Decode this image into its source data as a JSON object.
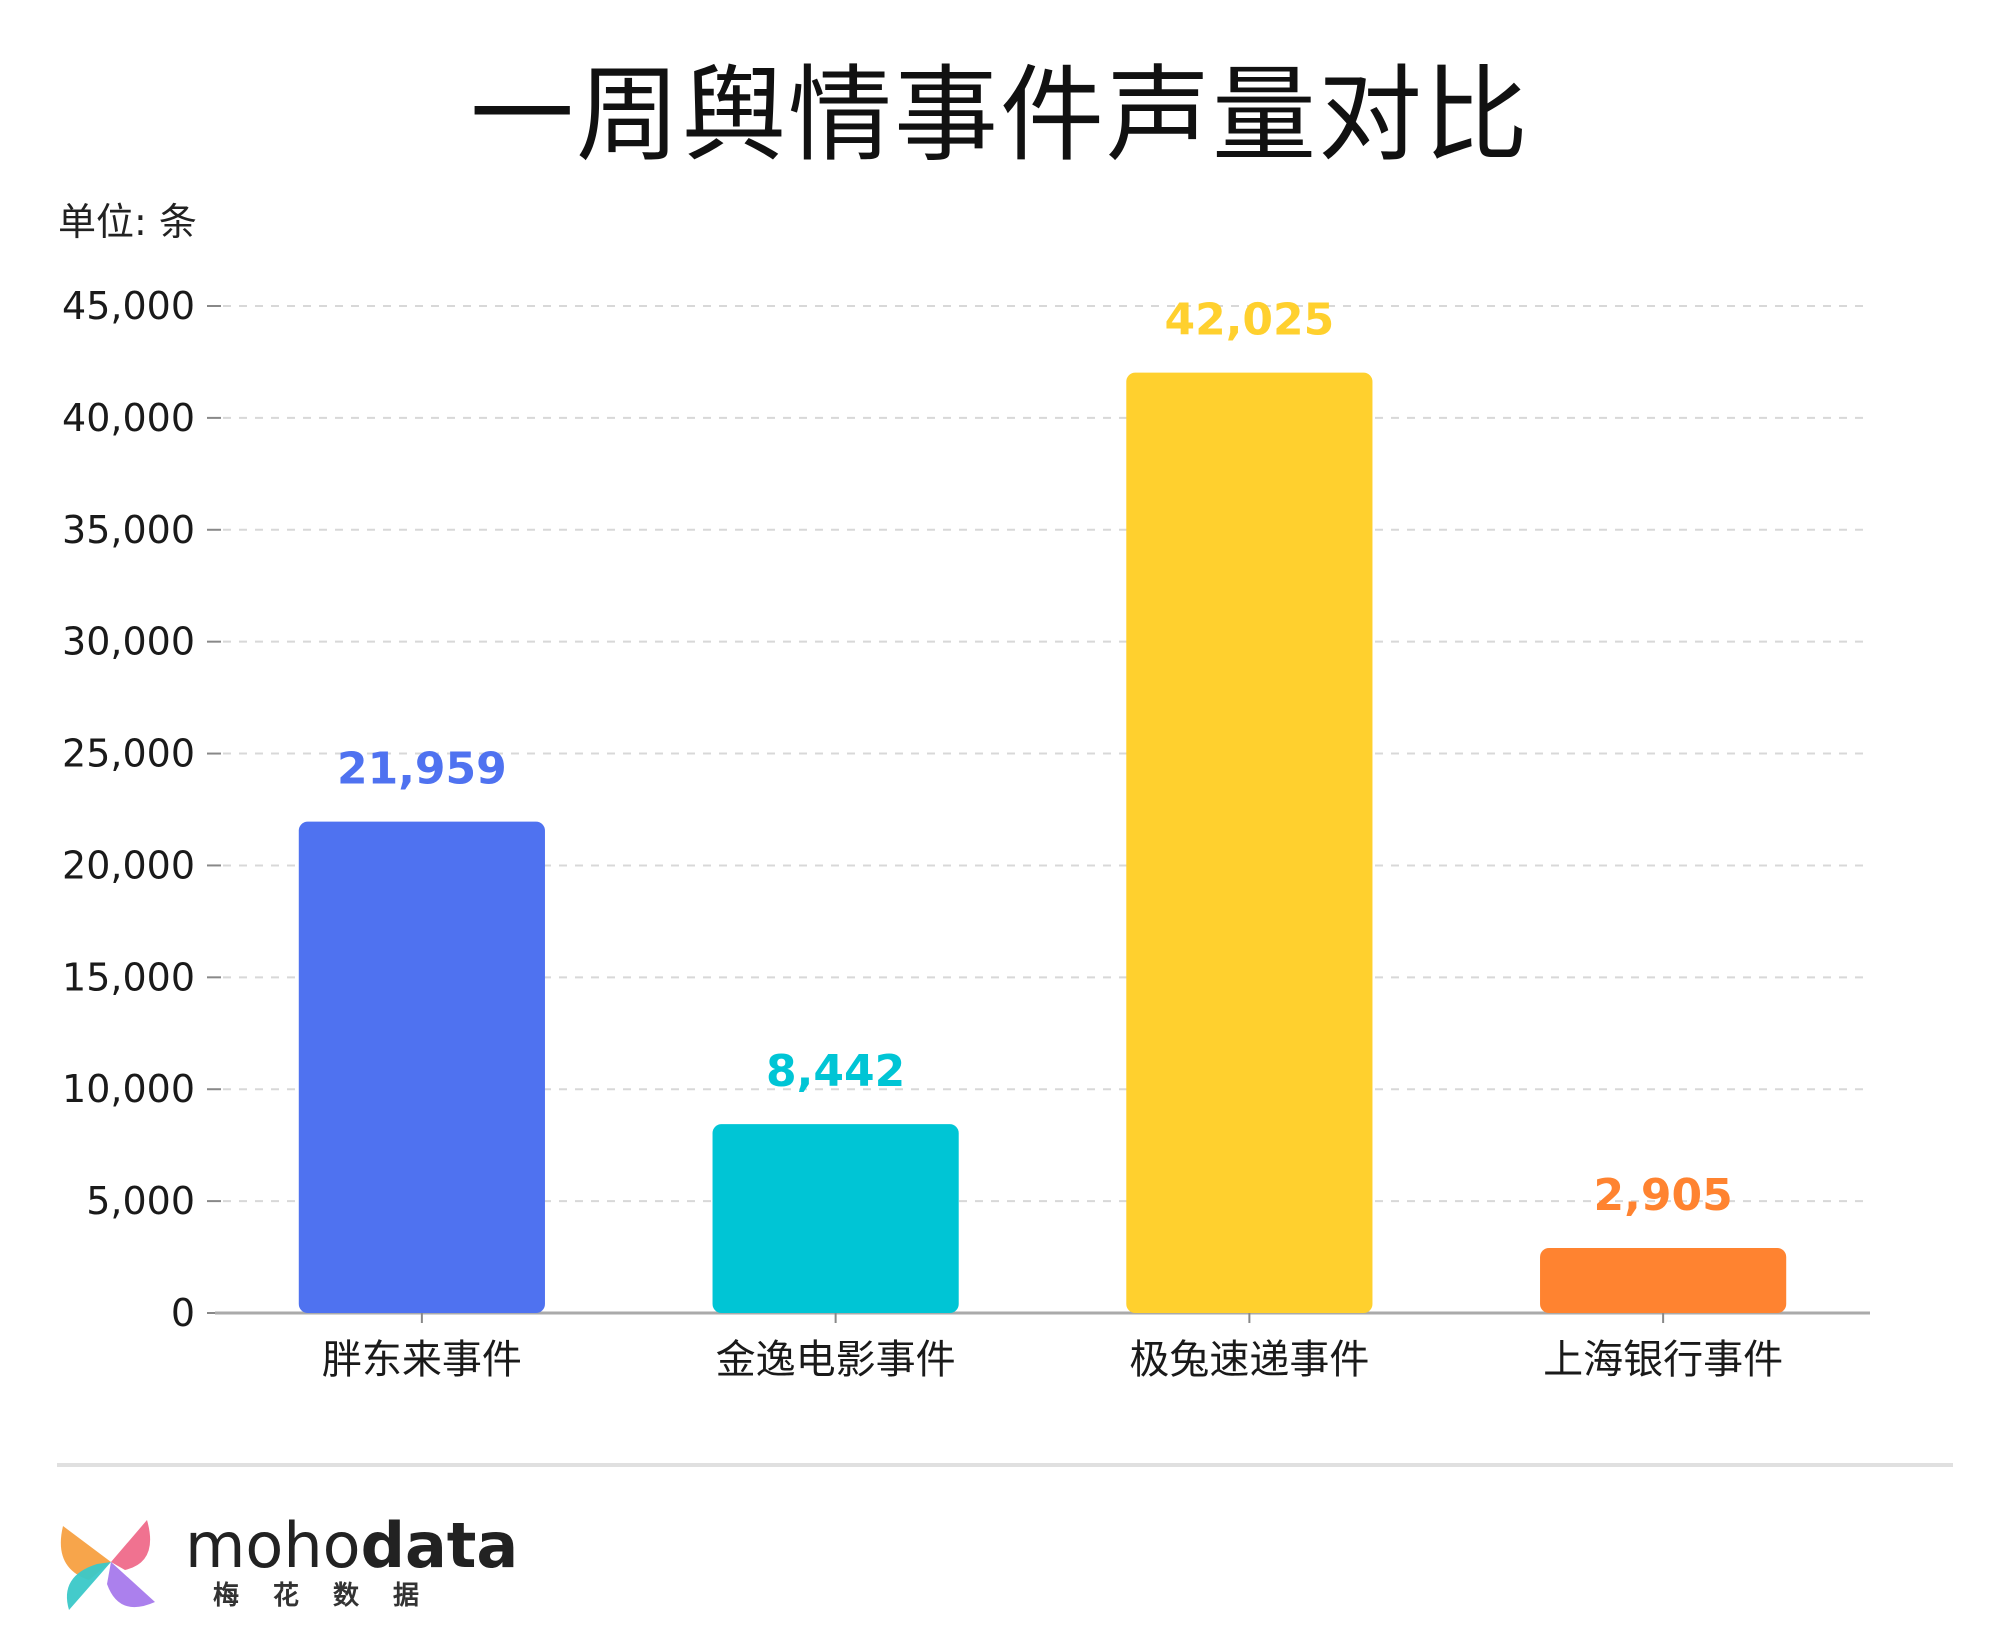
{
  "title": "一周舆情事件声量对比",
  "unit_label": "单位: 条",
  "chart_data": {
    "type": "bar",
    "title": "一周舆情事件声量对比",
    "categories": [
      "胖东来事件",
      "金逸电影事件",
      "极兔速递事件",
      "上海银行事件"
    ],
    "values": [
      21959,
      8442,
      42025,
      2905
    ],
    "value_labels": [
      "21,959",
      "8,442",
      "42,025",
      "2,905"
    ],
    "colors": [
      "#4f72f0",
      "#00c5d5",
      "#ffd02e",
      "#ff8330"
    ],
    "ylim": [
      0,
      45000
    ],
    "yticks": [
      0,
      5000,
      10000,
      15000,
      20000,
      25000,
      30000,
      35000,
      40000,
      45000
    ],
    "ytick_labels": [
      "0",
      "5,000",
      "10,000",
      "15,000",
      "20,000",
      "25,000",
      "30,000",
      "35,000",
      "40,000",
      "45,000"
    ],
    "grid": "dashed horizontal",
    "xlabel": "",
    "ylabel": ""
  },
  "footer": {
    "brand_light": "moho",
    "brand_bold": "data",
    "brand_sub": "梅花数据",
    "logo_colors": [
      "#f7a041",
      "#ef6a8a",
      "#a779ec",
      "#3ac8c8"
    ]
  }
}
